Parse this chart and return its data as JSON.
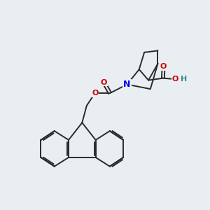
{
  "bg_color": "#e8eef2",
  "bond_color": "#2a2a2a",
  "bond_width": 1.4,
  "atom_colors": {
    "O": "#cc0000",
    "N": "#0000ee",
    "H": "#3a8a8a",
    "C": "#2a2a2a"
  },
  "figsize": [
    3.0,
    3.0
  ],
  "dpi": 100,
  "xlim": [
    0,
    10
  ],
  "ylim": [
    0,
    10
  ]
}
